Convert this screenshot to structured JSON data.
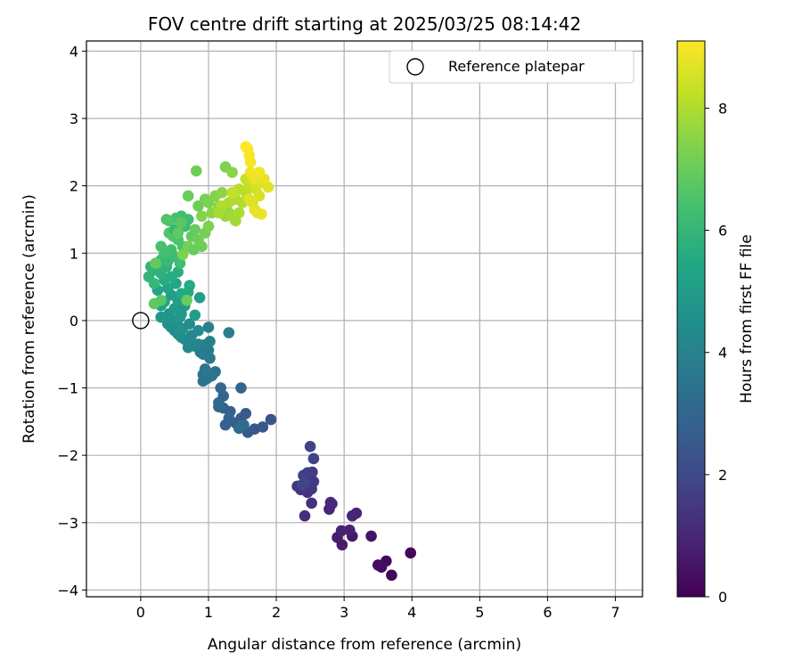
{
  "chart_data": {
    "type": "scatter",
    "title": "FOV centre drift starting at 2025/03/25 08:14:42",
    "xlabel": "Angular distance from reference (arcmin)",
    "ylabel": "Rotation from reference (arcmin)",
    "xlim": [
      -0.8,
      7.4
    ],
    "ylim": [
      -4.1,
      4.15
    ],
    "x_ticks": [
      0,
      1,
      2,
      3,
      4,
      5,
      6,
      7
    ],
    "x_tick_labels": [
      "0",
      "1",
      "2",
      "3",
      "4",
      "5",
      "6",
      "7"
    ],
    "y_ticks": [
      4,
      3,
      2,
      1,
      0,
      -1,
      -2,
      -3,
      -4
    ],
    "y_tick_labels": [
      "4",
      "3",
      "2",
      "1",
      "0",
      "−1",
      "−2",
      "−3",
      "−4"
    ],
    "grid": true,
    "legend": {
      "position": "upper right",
      "entries": [
        {
          "label": "Reference platepar",
          "marker": "open-circle"
        }
      ]
    },
    "reference_point": {
      "x": 0,
      "y": 0
    },
    "colorbar": {
      "label": "Hours from first FF file",
      "range": [
        0,
        9.1
      ],
      "ticks": [
        0,
        2,
        4,
        6,
        8
      ],
      "tick_labels": [
        "0",
        "2",
        "4",
        "6",
        "8"
      ],
      "colormap": "viridis"
    },
    "series": [
      {
        "points": [
          [
            3.7,
            -3.78
          ],
          [
            3.62,
            -3.57
          ],
          [
            3.55,
            -3.66
          ],
          [
            3.5,
            -3.63
          ],
          [
            3.98,
            -3.45
          ],
          [
            3.4,
            -3.2
          ],
          [
            3.12,
            -3.2
          ],
          [
            2.97,
            -3.33
          ],
          [
            2.9,
            -3.22
          ],
          [
            3.08,
            -3.11
          ],
          [
            2.96,
            -3.12
          ],
          [
            3.18,
            -2.86
          ],
          [
            3.12,
            -2.9
          ],
          [
            2.78,
            -2.8
          ],
          [
            2.82,
            -2.72
          ],
          [
            2.8,
            -2.7
          ],
          [
            2.42,
            -2.9
          ],
          [
            2.52,
            -2.71
          ],
          [
            2.46,
            -2.55
          ],
          [
            2.36,
            -2.51
          ],
          [
            2.31,
            -2.46
          ],
          [
            2.52,
            -2.5
          ],
          [
            2.45,
            -2.35
          ],
          [
            2.55,
            -2.39
          ],
          [
            2.53,
            -2.25
          ],
          [
            2.46,
            -2.26
          ],
          [
            2.4,
            -2.3
          ],
          [
            2.55,
            -2.05
          ],
          [
            2.5,
            -1.87
          ],
          [
            2.42,
            -2.4
          ],
          [
            2.38,
            -2.44
          ],
          [
            1.92,
            -1.47
          ],
          [
            1.8,
            -1.58
          ],
          [
            1.68,
            -1.61
          ],
          [
            1.58,
            -1.66
          ],
          [
            1.55,
            -1.38
          ],
          [
            1.48,
            -1.45
          ],
          [
            1.4,
            -1.52
          ],
          [
            1.32,
            -1.35
          ],
          [
            1.25,
            -1.55
          ],
          [
            1.22,
            -1.3
          ],
          [
            1.3,
            -1.45
          ],
          [
            1.15,
            -1.28
          ],
          [
            1.22,
            -1.12
          ],
          [
            1.15,
            -1.22
          ],
          [
            1.18,
            -1.0
          ],
          [
            1.48,
            -1.0
          ],
          [
            1.45,
            -1.6
          ],
          [
            1.52,
            -1.55
          ],
          [
            1.1,
            -0.76
          ],
          [
            1.05,
            -0.82
          ],
          [
            0.98,
            -0.86
          ],
          [
            0.92,
            -0.8
          ],
          [
            0.95,
            -0.72
          ],
          [
            1.02,
            -0.56
          ],
          [
            1.0,
            -0.44
          ],
          [
            0.92,
            -0.5
          ],
          [
            0.88,
            -0.47
          ],
          [
            0.95,
            -0.36
          ],
          [
            1.02,
            -0.31
          ],
          [
            1.0,
            -0.1
          ],
          [
            1.3,
            -0.18
          ],
          [
            0.85,
            -0.35
          ],
          [
            0.92,
            -0.9
          ],
          [
            0.8,
            -0.38
          ],
          [
            0.75,
            -0.33
          ],
          [
            0.7,
            -0.4
          ],
          [
            0.65,
            -0.28
          ],
          [
            0.6,
            -0.25
          ],
          [
            0.55,
            -0.2
          ],
          [
            0.5,
            -0.15
          ],
          [
            0.45,
            -0.1
          ],
          [
            0.4,
            -0.05
          ],
          [
            0.55,
            -0.08
          ],
          [
            0.62,
            -0.12
          ],
          [
            0.48,
            0.0
          ],
          [
            0.42,
            0.1
          ],
          [
            0.58,
            0.05
          ],
          [
            0.3,
            0.05
          ],
          [
            0.75,
            -0.22
          ],
          [
            0.85,
            -0.15
          ],
          [
            0.72,
            -0.05
          ],
          [
            0.6,
            0.1
          ],
          [
            0.5,
            0.18
          ],
          [
            0.65,
            0.22
          ],
          [
            0.8,
            0.08
          ],
          [
            0.87,
            0.34
          ],
          [
            0.55,
            0.3
          ],
          [
            0.45,
            0.38
          ],
          [
            0.35,
            0.28
          ],
          [
            0.3,
            0.22
          ],
          [
            0.25,
            0.45
          ],
          [
            0.4,
            0.48
          ],
          [
            0.52,
            0.55
          ],
          [
            0.6,
            0.4
          ],
          [
            0.7,
            0.42
          ],
          [
            0.72,
            0.52
          ],
          [
            0.35,
            0.6
          ],
          [
            0.45,
            0.65
          ],
          [
            0.55,
            0.72
          ],
          [
            0.38,
            0.8
          ],
          [
            0.3,
            0.7
          ],
          [
            0.2,
            0.75
          ],
          [
            0.15,
            0.8
          ],
          [
            0.12,
            0.65
          ],
          [
            0.2,
            0.55
          ],
          [
            0.25,
            0.85
          ],
          [
            0.3,
            0.9
          ],
          [
            0.4,
            0.88
          ],
          [
            0.5,
            0.95
          ],
          [
            0.58,
            0.85
          ],
          [
            0.45,
            1.05
          ],
          [
            0.35,
            1.0
          ],
          [
            0.3,
            1.1
          ],
          [
            0.62,
            1.1
          ],
          [
            0.55,
            1.2
          ],
          [
            0.48,
            1.25
          ],
          [
            0.42,
            1.3
          ],
          [
            0.5,
            1.35
          ],
          [
            0.65,
            1.4
          ],
          [
            0.7,
            1.5
          ],
          [
            0.6,
            1.55
          ],
          [
            0.52,
            1.52
          ],
          [
            0.42,
            1.48
          ],
          [
            0.38,
            1.5
          ],
          [
            0.6,
            1.45
          ],
          [
            0.55,
            1.3
          ],
          [
            0.75,
            1.25
          ],
          [
            0.8,
            1.35
          ],
          [
            0.85,
            1.2
          ],
          [
            0.7,
            1.1
          ],
          [
            0.62,
            0.98
          ],
          [
            0.78,
            1.05
          ],
          [
            0.9,
            1.1
          ],
          [
            0.95,
            1.3
          ],
          [
            1.0,
            1.4
          ],
          [
            0.9,
            1.55
          ],
          [
            1.05,
            1.6
          ],
          [
            1.15,
            1.7
          ],
          [
            0.7,
            1.85
          ],
          [
            0.85,
            1.7
          ],
          [
            0.95,
            1.8
          ],
          [
            1.0,
            1.75
          ],
          [
            1.1,
            1.85
          ],
          [
            1.2,
            1.9
          ],
          [
            0.82,
            2.22
          ],
          [
            1.25,
            2.28
          ],
          [
            1.35,
            2.2
          ],
          [
            0.3,
            0.3
          ],
          [
            0.2,
            0.25
          ],
          [
            0.22,
            0.85
          ],
          [
            0.68,
            0.3
          ],
          [
            1.3,
            1.6
          ],
          [
            1.25,
            1.55
          ],
          [
            1.35,
            1.55
          ],
          [
            1.4,
            1.48
          ],
          [
            1.45,
            1.6
          ],
          [
            1.3,
            1.75
          ],
          [
            1.4,
            1.8
          ],
          [
            1.5,
            1.75
          ],
          [
            1.45,
            1.95
          ],
          [
            1.55,
            1.9
          ],
          [
            1.6,
            2.0
          ],
          [
            1.35,
            1.9
          ],
          [
            1.2,
            1.7
          ],
          [
            1.15,
            1.6
          ],
          [
            1.55,
            2.1
          ],
          [
            1.62,
            2.05
          ],
          [
            1.7,
            1.95
          ],
          [
            1.75,
            1.85
          ],
          [
            1.65,
            1.75
          ],
          [
            1.6,
            1.8
          ],
          [
            1.68,
            1.65
          ],
          [
            1.72,
            1.6
          ],
          [
            1.78,
            1.58
          ],
          [
            1.68,
            2.1
          ],
          [
            1.62,
            2.2
          ],
          [
            1.62,
            2.35
          ],
          [
            1.6,
            2.45
          ],
          [
            1.58,
            2.55
          ],
          [
            1.55,
            2.58
          ],
          [
            1.8,
            2.05
          ],
          [
            1.88,
            1.98
          ],
          [
            1.82,
            2.1
          ],
          [
            1.75,
            2.2
          ]
        ],
        "hours": [
          0.1,
          0.2,
          0.3,
          0.35,
          0.15,
          0.5,
          0.6,
          0.7,
          0.75,
          0.8,
          0.85,
          0.9,
          0.95,
          1.0,
          1.05,
          1.1,
          1.2,
          1.25,
          1.3,
          1.35,
          1.4,
          1.45,
          1.5,
          1.55,
          1.6,
          1.65,
          1.7,
          1.75,
          1.8,
          1.85,
          1.9,
          2.4,
          2.45,
          2.5,
          2.55,
          2.6,
          2.65,
          2.7,
          2.75,
          2.8,
          2.85,
          2.9,
          2.95,
          3.0,
          3.05,
          3.1,
          3.0,
          3.2,
          3.25,
          3.4,
          3.45,
          3.5,
          3.55,
          3.6,
          3.65,
          3.7,
          3.75,
          3.8,
          3.85,
          3.9,
          3.95,
          3.9,
          4.0,
          3.5,
          4.1,
          4.15,
          4.2,
          4.25,
          4.3,
          4.35,
          4.4,
          4.45,
          4.5,
          4.55,
          4.6,
          4.65,
          4.7,
          4.75,
          4.8,
          4.2,
          4.3,
          4.4,
          4.85,
          4.9,
          4.95,
          5.0,
          5.05,
          5.1,
          5.15,
          5.2,
          5.25,
          5.3,
          5.35,
          5.4,
          5.45,
          5.5,
          5.55,
          5.6,
          5.65,
          5.7,
          5.75,
          5.8,
          5.85,
          5.9,
          5.95,
          6.0,
          6.05,
          6.1,
          6.15,
          6.2,
          6.25,
          6.3,
          6.35,
          6.4,
          6.45,
          6.5,
          6.55,
          6.6,
          6.0,
          6.1,
          6.2,
          6.3,
          6.4,
          6.5,
          6.6,
          6.7,
          6.8,
          6.9,
          7.0,
          7.1,
          7.2,
          7.3,
          7.0,
          7.1,
          7.2,
          7.3,
          7.4,
          7.5,
          7.6,
          7.0,
          7.1,
          7.2,
          7.3,
          7.4,
          7.5,
          7.1,
          7.3,
          7.5,
          6.7,
          6.8,
          6.9,
          7.0,
          7.6,
          7.7,
          7.8,
          7.85,
          7.9,
          7.95,
          8.0,
          8.05,
          8.1,
          8.15,
          8.2,
          8.25,
          8.0,
          7.9,
          8.3,
          8.4,
          8.5,
          8.55,
          8.6,
          8.65,
          8.7,
          8.75,
          8.8,
          8.85,
          8.9,
          8.95,
          9.0,
          9.05,
          9.1,
          8.6,
          8.7,
          8.8,
          8.9
        ]
      }
    ]
  }
}
